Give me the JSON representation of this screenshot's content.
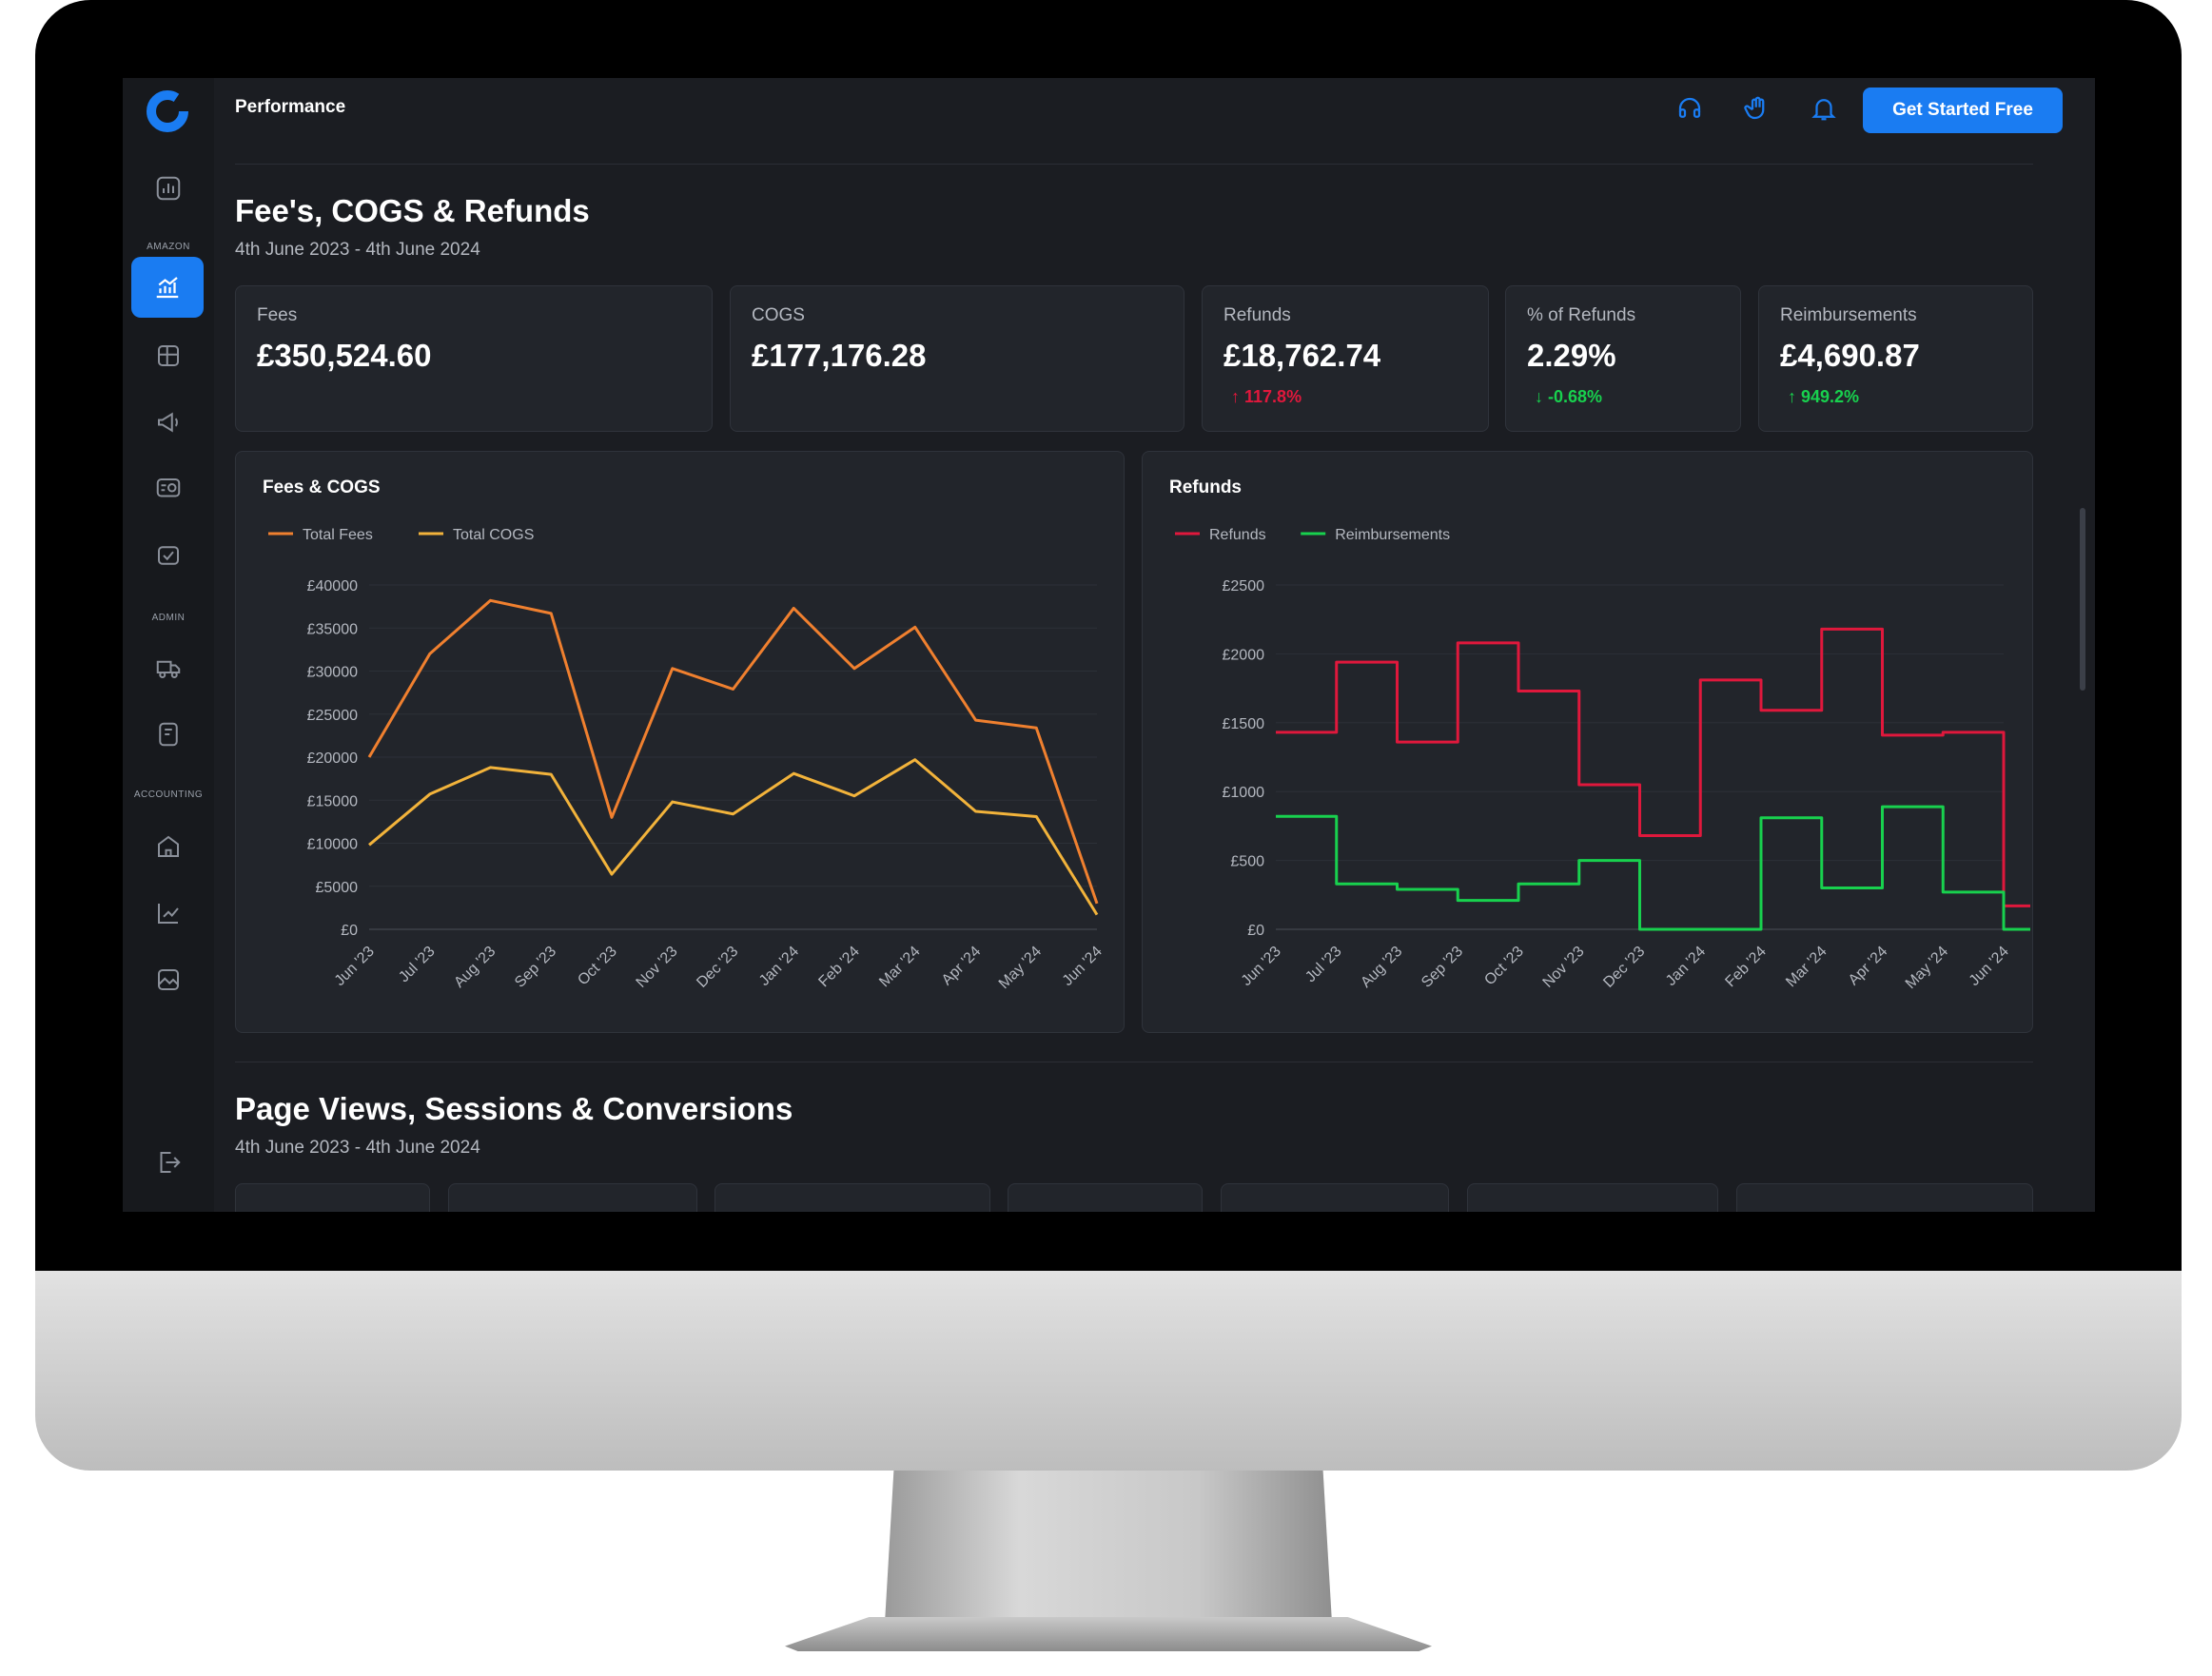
{
  "app": {
    "title": "Performance",
    "cta_label": "Get Started Free"
  },
  "colors": {
    "accent": "#1a7cf2",
    "fees": "#f0802f",
    "cogs": "#f2b33b",
    "refunds": "#e0183c",
    "reimbursements": "#18d14e",
    "negative": "#e0183c",
    "positive": "#18d14e"
  },
  "sidebar": {
    "sections": [
      "AMAZON",
      "ADMIN",
      "ACCOUNTING"
    ],
    "icons": [
      "dashboard-icon",
      "analytics-icon",
      "inventory-icon",
      "megaphone-icon",
      "product-icon",
      "orders-icon",
      "logistics-icon",
      "reports-icon",
      "bank-icon",
      "chart-icon",
      "gallery-icon",
      "logout-icon"
    ]
  },
  "topbar": {
    "icons": [
      "headset-icon",
      "hand-wave-icon",
      "bell-icon"
    ]
  },
  "section1": {
    "title": "Fee's, COGS & Refunds",
    "date_range": "4th June 2023 - 4th June 2024",
    "cards": [
      {
        "label": "Fees",
        "value": "£350,524.60",
        "change": "",
        "direction": ""
      },
      {
        "label": "COGS",
        "value": "£177,176.28",
        "change": "",
        "direction": ""
      },
      {
        "label": "Refunds",
        "value": "£18,762.74",
        "change": "117.8%",
        "direction": "up-bad"
      },
      {
        "label": "% of Refunds",
        "value": "2.29%",
        "change": "-0.68%",
        "direction": "down-good"
      },
      {
        "label": "Reimbursements",
        "value": "£4,690.87",
        "change": "949.2%",
        "direction": "up-good"
      }
    ]
  },
  "section2": {
    "title": "Page Views, Sessions & Conversions",
    "date_range": "4th June 2023 - 4th June 2024"
  },
  "chart_data": [
    {
      "type": "line",
      "title": "Fees & COGS",
      "categories": [
        "Jun '23",
        "Jul '23",
        "Aug '23",
        "Sep '23",
        "Oct '23",
        "Nov '23",
        "Dec '23",
        "Jan '24",
        "Feb '24",
        "Mar '24",
        "Apr '24",
        "May '24",
        "Jun '24"
      ],
      "series": [
        {
          "name": "Total Fees",
          "color": "#f0802f",
          "values": [
            20000,
            32000,
            38200,
            36700,
            13000,
            30300,
            27900,
            37300,
            30300,
            35100,
            24300,
            23400,
            3000
          ]
        },
        {
          "name": "Total COGS",
          "color": "#f2b33b",
          "values": [
            9800,
            15700,
            18800,
            18000,
            6400,
            14800,
            13400,
            18100,
            15500,
            19700,
            13700,
            13100,
            1700
          ]
        }
      ],
      "yticks": [
        "£0",
        "£5000",
        "£10000",
        "£15000",
        "£20000",
        "£25000",
        "£30000",
        "£35000",
        "£40000"
      ],
      "ylim": [
        0,
        40000
      ],
      "legend": "top-left",
      "grid": true
    },
    {
      "type": "line",
      "title": "Refunds",
      "step": true,
      "categories": [
        "Jun '23",
        "Jul '23",
        "Aug '23",
        "Sep '23",
        "Oct '23",
        "Nov '23",
        "Dec '23",
        "Jan '24",
        "Feb '24",
        "Mar '24",
        "Apr '24",
        "May '24",
        "Jun '24"
      ],
      "series": [
        {
          "name": "Refunds",
          "color": "#e0183c",
          "values": [
            1430,
            1940,
            1360,
            2080,
            1730,
            1050,
            680,
            1810,
            1590,
            2180,
            1410,
            1430,
            170
          ]
        },
        {
          "name": "Reimbursements",
          "color": "#18d14e",
          "values": [
            820,
            330,
            290,
            210,
            330,
            500,
            0,
            0,
            810,
            300,
            890,
            270,
            0
          ]
        }
      ],
      "yticks": [
        "£0",
        "£500",
        "£1000",
        "£1500",
        "£2000",
        "£2500"
      ],
      "ylim": [
        0,
        2500
      ],
      "legend": "top-left",
      "grid": true
    }
  ]
}
